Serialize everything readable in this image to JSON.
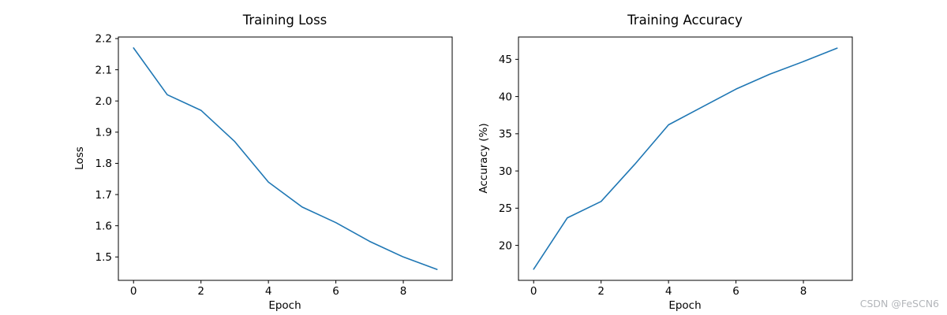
{
  "page": {
    "background": "#ffffff",
    "text_color": "#000000"
  },
  "watermark": {
    "text": "CSDN @FeSCN6",
    "color": "#b3b6ba"
  },
  "chart_data": [
    {
      "type": "line",
      "title": "Training Loss",
      "xlabel": "Epoch",
      "ylabel": "Loss",
      "x": [
        0,
        1,
        2,
        3,
        4,
        5,
        6,
        7,
        8,
        9
      ],
      "y": [
        2.17,
        2.02,
        1.97,
        1.87,
        1.74,
        1.66,
        1.61,
        1.55,
        1.5,
        1.46
      ],
      "xlim": [
        -0.45,
        9.45
      ],
      "ylim": [
        1.425,
        2.205
      ],
      "xticks": [
        0,
        2,
        4,
        6,
        8
      ],
      "xtick_labels": [
        "0",
        "2",
        "4",
        "6",
        "8"
      ],
      "yticks": [
        1.5,
        1.6,
        1.7,
        1.8,
        1.9,
        2.0,
        2.1,
        2.2
      ],
      "ytick_labels": [
        "1.5",
        "1.6",
        "1.7",
        "1.8",
        "1.9",
        "2.0",
        "2.1",
        "2.2"
      ],
      "line_color": "#1f77b4",
      "grid": false,
      "legend": null
    },
    {
      "type": "line",
      "title": "Training Accuracy",
      "xlabel": "Epoch",
      "ylabel": "Accuracy (%)",
      "x": [
        0,
        1,
        2,
        3,
        4,
        5,
        6,
        7,
        8,
        9
      ],
      "y": [
        16.8,
        23.7,
        25.9,
        30.9,
        36.2,
        38.6,
        41.0,
        43.0,
        44.7,
        46.5
      ],
      "xlim": [
        -0.45,
        9.45
      ],
      "ylim": [
        15.3,
        48.0
      ],
      "xticks": [
        0,
        2,
        4,
        6,
        8
      ],
      "xtick_labels": [
        "0",
        "2",
        "4",
        "6",
        "8"
      ],
      "yticks": [
        20,
        25,
        30,
        35,
        40,
        45
      ],
      "ytick_labels": [
        "20",
        "25",
        "30",
        "35",
        "40",
        "45"
      ],
      "line_color": "#1f77b4",
      "grid": false,
      "legend": null
    }
  ]
}
